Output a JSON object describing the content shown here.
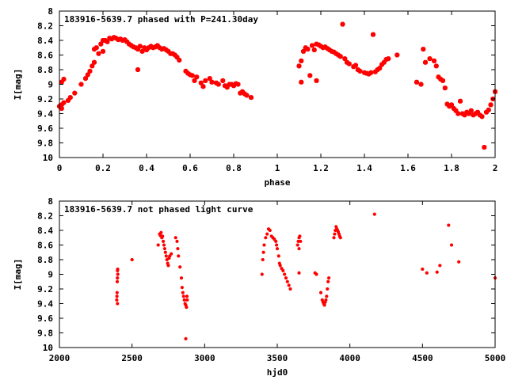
{
  "chart_data": [
    {
      "type": "scatter",
      "title": "183916-5639.7 phased with P=241.30day",
      "xlabel": "phase",
      "ylabel": "I[mag]",
      "xlim": [
        0,
        2
      ],
      "ylim": [
        8,
        10
      ],
      "y_inverted": true,
      "x_ticks": [
        "0",
        "0.2",
        "0.4",
        "0.6",
        "0.8",
        "1",
        "1.2",
        "1.4",
        "1.6",
        "1.8",
        "2"
      ],
      "y_ticks": [
        "8",
        "8.2",
        "8.4",
        "8.6",
        "8.8",
        "9",
        "9.2",
        "9.4",
        "9.6",
        "9.8",
        "10"
      ],
      "grid": false,
      "marker_color": "#ff0000",
      "series": [
        {
          "points": [
            [
              0.0,
              9.3
            ],
            [
              0.01,
              9.28
            ],
            [
              0.01,
              9.33
            ],
            [
              0.02,
              9.25
            ],
            [
              0.01,
              8.97
            ],
            [
              0.02,
              8.93
            ],
            [
              0.04,
              9.22
            ],
            [
              0.05,
              9.18
            ],
            [
              0.07,
              9.12
            ],
            [
              0.1,
              9.0
            ],
            [
              0.12,
              8.92
            ],
            [
              0.13,
              8.87
            ],
            [
              0.14,
              8.82
            ],
            [
              0.15,
              8.75
            ],
            [
              0.16,
              8.7
            ],
            [
              0.16,
              8.52
            ],
            [
              0.17,
              8.5
            ],
            [
              0.18,
              8.58
            ],
            [
              0.19,
              8.45
            ],
            [
              0.2,
              8.55
            ],
            [
              0.2,
              8.4
            ],
            [
              0.21,
              8.4
            ],
            [
              0.22,
              8.42
            ],
            [
              0.23,
              8.37
            ],
            [
              0.24,
              8.38
            ],
            [
              0.25,
              8.36
            ],
            [
              0.26,
              8.37
            ],
            [
              0.27,
              8.39
            ],
            [
              0.28,
              8.38
            ],
            [
              0.29,
              8.4
            ],
            [
              0.3,
              8.39
            ],
            [
              0.31,
              8.42
            ],
            [
              0.32,
              8.45
            ],
            [
              0.33,
              8.47
            ],
            [
              0.34,
              8.49
            ],
            [
              0.35,
              8.5
            ],
            [
              0.36,
              8.52
            ],
            [
              0.36,
              8.8
            ],
            [
              0.37,
              8.48
            ],
            [
              0.38,
              8.55
            ],
            [
              0.39,
              8.5
            ],
            [
              0.4,
              8.53
            ],
            [
              0.41,
              8.5
            ],
            [
              0.42,
              8.48
            ],
            [
              0.43,
              8.5
            ],
            [
              0.44,
              8.49
            ],
            [
              0.45,
              8.47
            ],
            [
              0.46,
              8.5
            ],
            [
              0.47,
              8.52
            ],
            [
              0.48,
              8.51
            ],
            [
              0.49,
              8.53
            ],
            [
              0.5,
              8.55
            ],
            [
              0.51,
              8.58
            ],
            [
              0.52,
              8.58
            ],
            [
              0.53,
              8.6
            ],
            [
              0.54,
              8.63
            ],
            [
              0.55,
              8.67
            ],
            [
              0.58,
              8.82
            ],
            [
              0.59,
              8.85
            ],
            [
              0.6,
              8.87
            ],
            [
              0.61,
              8.88
            ],
            [
              0.62,
              8.95
            ],
            [
              0.63,
              8.9
            ],
            [
              0.65,
              8.98
            ],
            [
              0.66,
              9.03
            ],
            [
              0.67,
              8.95
            ],
            [
              0.69,
              8.92
            ],
            [
              0.7,
              8.97
            ],
            [
              0.72,
              8.98
            ],
            [
              0.73,
              9.0
            ],
            [
              0.75,
              8.95
            ],
            [
              0.76,
              9.02
            ],
            [
              0.77,
              9.04
            ],
            [
              0.78,
              9.0
            ],
            [
              0.79,
              9.0
            ],
            [
              0.8,
              9.02
            ],
            [
              0.81,
              8.99
            ],
            [
              0.82,
              9.0
            ],
            [
              0.83,
              9.12
            ],
            [
              0.84,
              9.1
            ],
            [
              0.85,
              9.13
            ],
            [
              0.86,
              9.15
            ],
            [
              0.88,
              9.18
            ],
            [
              1.1,
              8.75
            ],
            [
              1.11,
              8.97
            ],
            [
              1.11,
              8.68
            ],
            [
              1.12,
              8.55
            ],
            [
              1.13,
              8.5
            ],
            [
              1.14,
              8.52
            ],
            [
              1.15,
              8.88
            ],
            [
              1.16,
              8.47
            ],
            [
              1.17,
              8.53
            ],
            [
              1.18,
              8.45
            ],
            [
              1.18,
              8.95
            ],
            [
              1.19,
              8.46
            ],
            [
              1.2,
              8.48
            ],
            [
              1.21,
              8.5
            ],
            [
              1.22,
              8.49
            ],
            [
              1.23,
              8.51
            ],
            [
              1.24,
              8.53
            ],
            [
              1.25,
              8.55
            ],
            [
              1.26,
              8.56
            ],
            [
              1.27,
              8.58
            ],
            [
              1.28,
              8.6
            ],
            [
              1.29,
              8.62
            ],
            [
              1.3,
              8.18
            ],
            [
              1.31,
              8.65
            ],
            [
              1.32,
              8.7
            ],
            [
              1.33,
              8.72
            ],
            [
              1.35,
              8.76
            ],
            [
              1.36,
              8.74
            ],
            [
              1.37,
              8.8
            ],
            [
              1.38,
              8.82
            ],
            [
              1.4,
              8.84
            ],
            [
              1.41,
              8.85
            ],
            [
              1.42,
              8.86
            ],
            [
              1.43,
              8.84
            ],
            [
              1.44,
              8.32
            ],
            [
              1.45,
              8.83
            ],
            [
              1.46,
              8.8
            ],
            [
              1.47,
              8.78
            ],
            [
              1.48,
              8.73
            ],
            [
              1.49,
              8.7
            ],
            [
              1.5,
              8.66
            ],
            [
              1.51,
              8.65
            ],
            [
              1.55,
              8.6
            ],
            [
              1.64,
              8.97
            ],
            [
              1.66,
              9.0
            ],
            [
              1.67,
              8.52
            ],
            [
              1.68,
              8.7
            ],
            [
              1.7,
              8.65
            ],
            [
              1.72,
              8.68
            ],
            [
              1.73,
              8.75
            ],
            [
              1.74,
              8.9
            ],
            [
              1.75,
              8.93
            ],
            [
              1.76,
              8.95
            ],
            [
              1.77,
              9.05
            ],
            [
              1.78,
              9.27
            ],
            [
              1.79,
              9.3
            ],
            [
              1.8,
              9.28
            ],
            [
              1.81,
              9.33
            ],
            [
              1.82,
              9.36
            ],
            [
              1.83,
              9.4
            ],
            [
              1.84,
              9.23
            ],
            [
              1.85,
              9.4
            ],
            [
              1.86,
              9.42
            ],
            [
              1.87,
              9.38
            ],
            [
              1.88,
              9.4
            ],
            [
              1.89,
              9.36
            ],
            [
              1.9,
              9.42
            ],
            [
              1.91,
              9.4
            ],
            [
              1.92,
              9.38
            ],
            [
              1.93,
              9.42
            ],
            [
              1.94,
              9.44
            ],
            [
              1.95,
              9.86
            ],
            [
              1.96,
              9.38
            ],
            [
              1.97,
              9.35
            ],
            [
              1.98,
              9.28
            ],
            [
              1.99,
              9.2
            ],
            [
              2.0,
              9.1
            ]
          ]
        }
      ]
    },
    {
      "type": "scatter",
      "title": "183916-5639.7 not phased light curve",
      "xlabel": "hjd0",
      "ylabel": "I[mag]",
      "xlim": [
        2000,
        5000
      ],
      "ylim": [
        8,
        10
      ],
      "y_inverted": true,
      "x_ticks": [
        "2000",
        "2500",
        "3000",
        "3500",
        "4000",
        "4500",
        "5000"
      ],
      "y_ticks": [
        "8",
        "8.2",
        "8.4",
        "8.6",
        "8.8",
        "9",
        "9.2",
        "9.4",
        "9.6",
        "9.8",
        "10"
      ],
      "grid": false,
      "marker_color": "#ff0000",
      "series": [
        {
          "points": [
            [
              2395,
              9.35
            ],
            [
              2396,
              9.3
            ],
            [
              2397,
              9.25
            ],
            [
              2398,
              9.1
            ],
            [
              2399,
              9.05
            ],
            [
              2400,
              8.95
            ],
            [
              2401,
              8.93
            ],
            [
              2402,
              9.0
            ],
            [
              2400,
              9.4
            ],
            [
              2500,
              8.8
            ],
            [
              2680,
              8.6
            ],
            [
              2690,
              8.45
            ],
            [
              2695,
              8.47
            ],
            [
              2700,
              8.43
            ],
            [
              2705,
              8.5
            ],
            [
              2710,
              8.48
            ],
            [
              2715,
              8.55
            ],
            [
              2720,
              8.6
            ],
            [
              2725,
              8.65
            ],
            [
              2730,
              8.7
            ],
            [
              2735,
              8.75
            ],
            [
              2740,
              8.8
            ],
            [
              2745,
              8.85
            ],
            [
              2750,
              8.88
            ],
            [
              2755,
              8.78
            ],
            [
              2760,
              8.75
            ],
            [
              2770,
              8.72
            ],
            [
              2800,
              8.5
            ],
            [
              2810,
              8.55
            ],
            [
              2815,
              8.65
            ],
            [
              2820,
              8.75
            ],
            [
              2830,
              8.9
            ],
            [
              2840,
              9.05
            ],
            [
              2845,
              9.18
            ],
            [
              2850,
              9.25
            ],
            [
              2855,
              9.3
            ],
            [
              2860,
              9.35
            ],
            [
              2865,
              9.4
            ],
            [
              2870,
              9.42
            ],
            [
              2875,
              9.45
            ],
            [
              2878,
              9.3
            ],
            [
              2880,
              9.35
            ],
            [
              2870,
              9.88
            ],
            [
              3395,
              9.0
            ],
            [
              3400,
              8.8
            ],
            [
              3405,
              8.7
            ],
            [
              3410,
              8.6
            ],
            [
              3420,
              8.5
            ],
            [
              3430,
              8.45
            ],
            [
              3440,
              8.38
            ],
            [
              3450,
              8.4
            ],
            [
              3460,
              8.48
            ],
            [
              3470,
              8.5
            ],
            [
              3480,
              8.52
            ],
            [
              3490,
              8.55
            ],
            [
              3495,
              8.6
            ],
            [
              3500,
              8.65
            ],
            [
              3510,
              8.75
            ],
            [
              3515,
              8.85
            ],
            [
              3520,
              8.88
            ],
            [
              3530,
              8.92
            ],
            [
              3540,
              8.95
            ],
            [
              3550,
              9.0
            ],
            [
              3560,
              9.05
            ],
            [
              3570,
              9.1
            ],
            [
              3580,
              9.15
            ],
            [
              3590,
              9.2
            ],
            [
              3640,
              8.6
            ],
            [
              3645,
              8.55
            ],
            [
              3650,
              8.5
            ],
            [
              3655,
              8.48
            ],
            [
              3660,
              8.55
            ],
            [
              3650,
              8.65
            ],
            [
              3650,
              8.98
            ],
            [
              3760,
              8.98
            ],
            [
              3770,
              9.0
            ],
            [
              3800,
              9.25
            ],
            [
              3810,
              9.35
            ],
            [
              3815,
              9.38
            ],
            [
              3820,
              9.4
            ],
            [
              3825,
              9.42
            ],
            [
              3830,
              9.38
            ],
            [
              3835,
              9.35
            ],
            [
              3840,
              9.3
            ],
            [
              3845,
              9.2
            ],
            [
              3850,
              9.1
            ],
            [
              3855,
              9.05
            ],
            [
              3890,
              8.5
            ],
            [
              3895,
              8.45
            ],
            [
              3900,
              8.4
            ],
            [
              3905,
              8.35
            ],
            [
              3910,
              8.38
            ],
            [
              3915,
              8.4
            ],
            [
              3920,
              8.42
            ],
            [
              3925,
              8.45
            ],
            [
              3930,
              8.48
            ],
            [
              3935,
              8.5
            ],
            [
              4170,
              8.18
            ],
            [
              4500,
              8.93
            ],
            [
              4530,
              8.98
            ],
            [
              4600,
              8.97
            ],
            [
              4620,
              8.88
            ],
            [
              4680,
              8.33
            ],
            [
              4700,
              8.6
            ],
            [
              4750,
              8.83
            ],
            [
              5000,
              9.05
            ]
          ]
        }
      ]
    }
  ]
}
